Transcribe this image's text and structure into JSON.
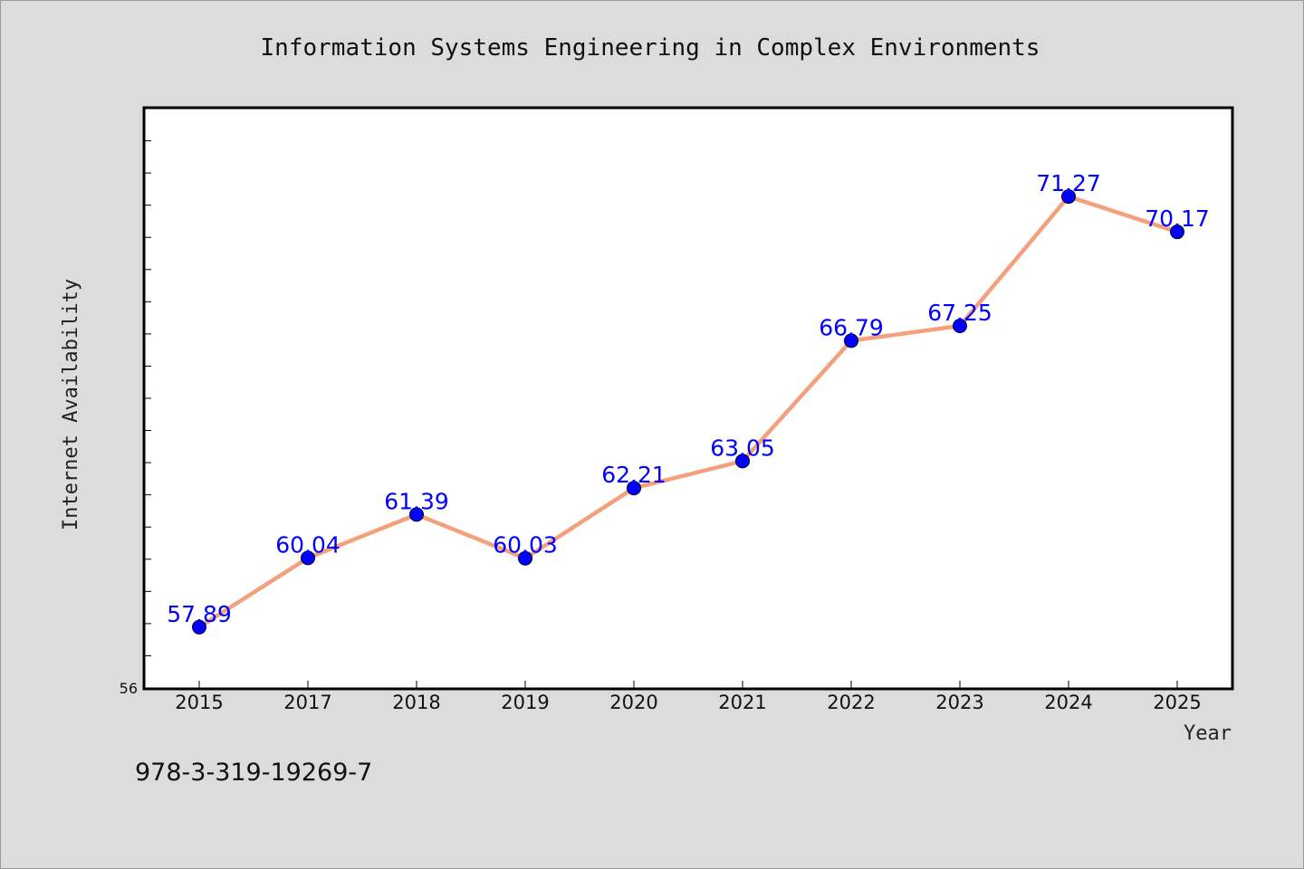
{
  "chart_data": {
    "type": "line",
    "title": "Information Systems Engineering in Complex Environments",
    "xlabel": "Year",
    "ylabel": "Internet Availability",
    "categories": [
      "2015",
      "2017",
      "2018",
      "2019",
      "2020",
      "2021",
      "2022",
      "2023",
      "2024",
      "2025"
    ],
    "series": [
      {
        "values": [
          57.89,
          60.04,
          61.39,
          60.03,
          62.21,
          63.05,
          66.79,
          67.25,
          71.27,
          70.17
        ],
        "data_labels": [
          "57.89",
          "60.04",
          "61.39",
          "60.03",
          "62.21",
          "63.05",
          "66.79",
          "67.25",
          "71.27",
          "70.17"
        ]
      }
    ],
    "ylim": [
      56,
      74
    ],
    "y_tick_label": "56",
    "grid": false,
    "legend": "none",
    "colors": {
      "line": "#f4a07c",
      "marker": "#0000ff",
      "data_label": "#0000ff",
      "plot_background": "#ffffff",
      "page_background": "#dcdcdc"
    }
  },
  "footer": {
    "isbn": "978-3-319-19269-7"
  }
}
